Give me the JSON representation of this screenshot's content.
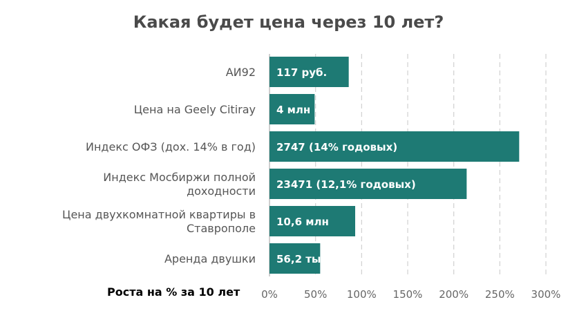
{
  "chart_data": {
    "type": "bar",
    "orientation": "horizontal",
    "title": "Какая будет цена через 10 лет?",
    "xlabel": "Роста на % за 10 лет",
    "ylabel": "",
    "categories": [
      "АИ92",
      "Цена на Geely Citiray",
      "Индекс ОФЗ (дох. 14% в год)",
      "Индекс Мосбиржи полной доходности",
      "Цена двухкомнатной квартиры в Ставрополе",
      "Аренда двушки"
    ],
    "values": [
      86,
      49,
      271,
      214,
      93,
      55
    ],
    "data_labels": [
      "117 руб.",
      "4 млн",
      "2747 (14% годовых)",
      "23471 (12,1% годовых)",
      "10,6 млн",
      "56,2 ты"
    ],
    "xlim": [
      0,
      300
    ],
    "xticks": [
      0,
      50,
      100,
      150,
      200,
      250,
      300
    ],
    "xtick_labels": [
      "0%",
      "50%",
      "100%",
      "150%",
      "200%",
      "250%",
      "300%"
    ],
    "grid": "vertical dashed",
    "legend": "none",
    "colors": {
      "bar": "#1e7a74",
      "bar_label": "#ffffff",
      "title": "#4a4a4a",
      "category_label": "#555555",
      "tick_label": "#666666",
      "axis": "#bfbfbf",
      "grid": "#d0d0d0"
    }
  }
}
